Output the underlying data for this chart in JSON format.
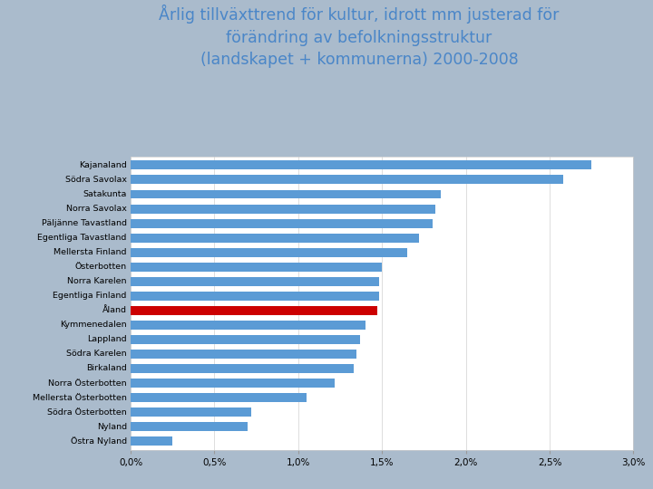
{
  "title_line1": "Årlig tillväxttrend för kultur, idrott mm justerad för",
  "title_line2": "förändring av befolkningsstruktur",
  "title_line3": "(landskapet + kommunerna) 2000-2008",
  "title_color": "#4A86C8",
  "categories": [
    "Kajanaland",
    "Södra Savolax",
    "Satakunta",
    "Norra Savolax",
    "Päljänne Tavastland",
    "Egentliga Tavastland",
    "Mellersta Finland",
    "Österbotten",
    "Norra Karelen",
    "Egentliga Finland",
    "Åland",
    "Kymmenedalen",
    "Lappland",
    "Södra Karelen",
    "Birkaland",
    "Norra Österbotten",
    "Mellersta Österbotten",
    "Södra Österbotten",
    "Nyland",
    "Östra Nyland"
  ],
  "values": [
    2.75,
    2.58,
    1.85,
    1.82,
    1.8,
    1.72,
    1.65,
    1.5,
    1.48,
    1.48,
    1.47,
    1.4,
    1.37,
    1.35,
    1.33,
    1.22,
    1.05,
    0.72,
    0.7,
    0.25
  ],
  "bar_colors": [
    "#5B9BD5",
    "#5B9BD5",
    "#5B9BD5",
    "#5B9BD5",
    "#5B9BD5",
    "#5B9BD5",
    "#5B9BD5",
    "#5B9BD5",
    "#5B9BD5",
    "#5B9BD5",
    "#CC0000",
    "#5B9BD5",
    "#5B9BD5",
    "#5B9BD5",
    "#5B9BD5",
    "#5B9BD5",
    "#5B9BD5",
    "#5B9BD5",
    "#5B9BD5",
    "#5B9BD5"
  ],
  "xlim": [
    0.0,
    3.0
  ],
  "xticks": [
    0.0,
    0.5,
    1.0,
    1.5,
    2.0,
    2.5,
    3.0
  ],
  "xticklabels": [
    "0,0%",
    "0,5%",
    "1,0%",
    "1,5%",
    "2,0%",
    "2,5%",
    "3,0%"
  ],
  "chart_bg": "#FFFFFF",
  "grid_color": "#DDDDDD",
  "bar_height": 0.62,
  "label_fontsize": 6.8,
  "tick_fontsize": 7.5,
  "title_fontsize": 12.5
}
